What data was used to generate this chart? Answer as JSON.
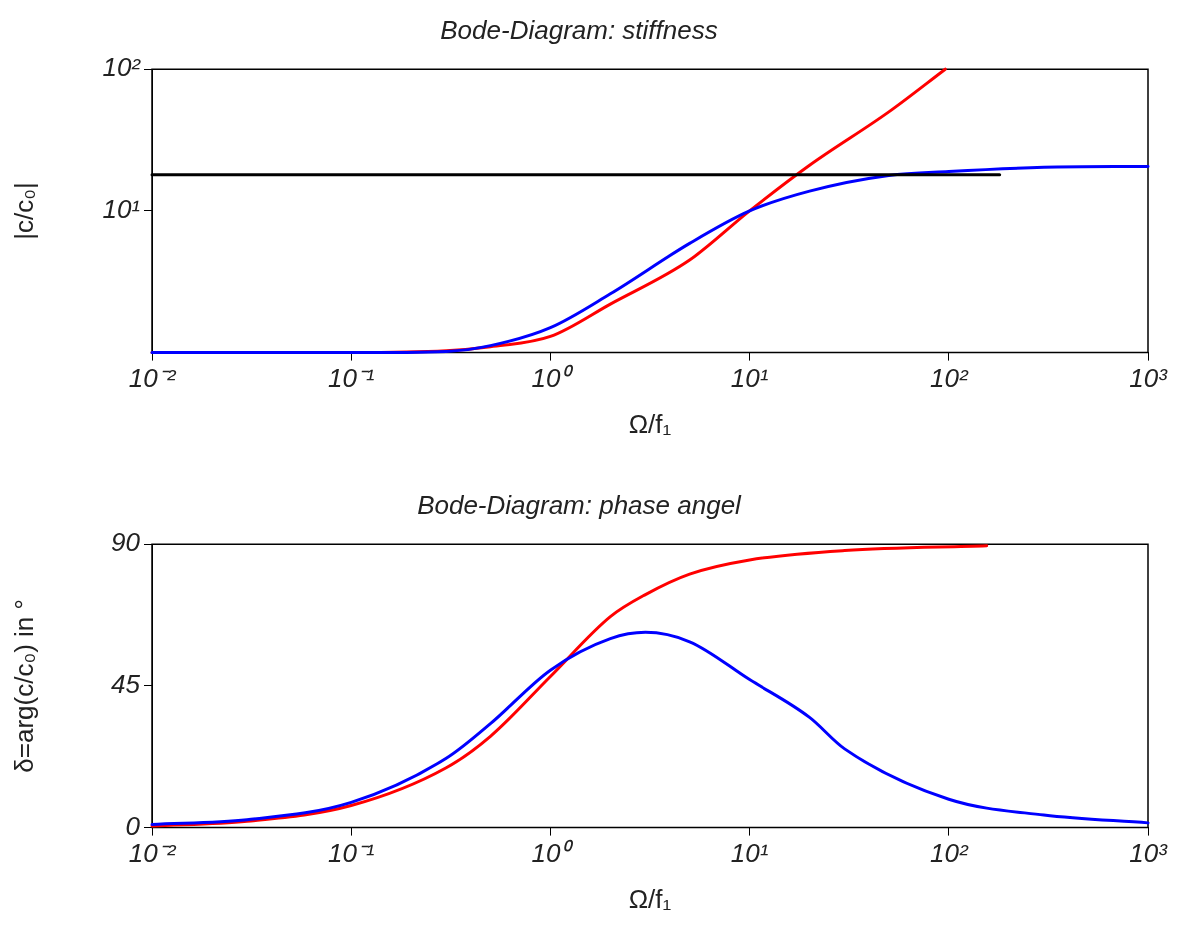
{
  "chart_data": [
    {
      "type": "line",
      "title": "Bode-Diagram: stiffness",
      "xlabel": "Ω/f₁",
      "ylabel": "|c/c₀|",
      "log": "xy",
      "grid": false,
      "legend": false,
      "marker": "none",
      "line_style": "solid",
      "xlim": [
        0.01,
        1000
      ],
      "xticks": [
        {
          "value": 0.01,
          "label": "10⁻²"
        },
        {
          "value": 0.1,
          "label": "10⁻¹"
        },
        {
          "value": 1,
          "label": "10⁰"
        },
        {
          "value": 10,
          "label": "10¹"
        },
        {
          "value": 100,
          "label": "10²"
        },
        {
          "value": 1000,
          "label": "10³"
        }
      ],
      "ylim": [
        1,
        100
      ],
      "yticks": [
        {
          "value": 10,
          "label": "10¹"
        },
        {
          "value": 100,
          "label": "10²"
        }
      ],
      "series": [
        {
          "color": "#ff0000",
          "x": [
            0.01,
            0.1,
            0.3,
            0.5,
            1,
            2,
            5,
            10,
            20,
            50,
            96
          ],
          "values": [
            1,
            1,
            1.03,
            1.1,
            1.3,
            2.2,
            4.5,
            10,
            21,
            50,
            100
          ]
        },
        {
          "color": "#0000ff",
          "x": [
            0.01,
            0.1,
            0.3,
            0.5,
            1,
            2,
            5,
            10,
            20,
            50,
            100,
            300,
            1000
          ],
          "values": [
            1,
            1,
            1.02,
            1.12,
            1.5,
            2.6,
            5.9,
            10,
            13.8,
            17.8,
            19,
            20.3,
            20.6
          ]
        },
        {
          "color": "#000000",
          "x": [
            0.01,
            180
          ],
          "values": [
            18,
            18
          ]
        }
      ]
    },
    {
      "type": "line",
      "title": "Bode-Diagram: phase angel",
      "xlabel": "Ω/f₁",
      "ylabel": "δ=arg(c/c₀) in °",
      "log": "x",
      "grid": false,
      "legend": false,
      "marker": "none",
      "line_style": "solid",
      "xlim": [
        0.01,
        1000
      ],
      "xticks": [
        {
          "value": 0.01,
          "label": "10⁻²"
        },
        {
          "value": 0.1,
          "label": "10⁻¹"
        },
        {
          "value": 1,
          "label": "10⁰"
        },
        {
          "value": 10,
          "label": "10¹"
        },
        {
          "value": 100,
          "label": "10²"
        },
        {
          "value": 1000,
          "label": "10³"
        }
      ],
      "ylim": [
        0,
        90
      ],
      "yticks": [
        0,
        45,
        90
      ],
      "series": [
        {
          "color": "#ff0000",
          "x": [
            0.01,
            0.03,
            0.1,
            0.3,
            0.5,
            1,
            2,
            3,
            5,
            10,
            30,
            155
          ],
          "values": [
            0.5,
            2,
            7,
            19,
            29,
            48,
            67,
            74,
            80.5,
            85,
            88,
            89.5
          ]
        },
        {
          "color": "#0000ff",
          "x": [
            0.01,
            0.03,
            0.1,
            0.3,
            0.5,
            1,
            2,
            3,
            5,
            10,
            20,
            30,
            100,
            300,
            1000
          ],
          "values": [
            1,
            2.5,
            8,
            22,
            33,
            50,
            60,
            62,
            59,
            47,
            35,
            25,
            9,
            4,
            1.5
          ]
        }
      ]
    }
  ]
}
